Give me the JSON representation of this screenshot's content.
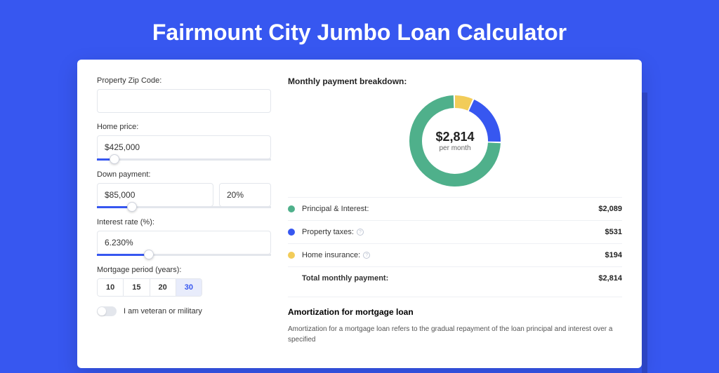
{
  "title": "Fairmount City Jumbo Loan Calculator",
  "colors": {
    "page_bg": "#3757f0",
    "card_bg": "#ffffff",
    "accent": "#3757f0",
    "slider_fill": "#3757f0",
    "border": "#e3e6ec",
    "text": "#333333"
  },
  "form": {
    "zip": {
      "label": "Property Zip Code:",
      "value": ""
    },
    "home_price": {
      "label": "Home price:",
      "value": "$425,000",
      "slider_pct": 10
    },
    "down_payment": {
      "label": "Down payment:",
      "value": "$85,000",
      "pct": "20%",
      "slider_pct": 20
    },
    "interest": {
      "label": "Interest rate (%):",
      "value": "6.230%",
      "slider_pct": 30
    },
    "period": {
      "label": "Mortgage period (years):",
      "options": [
        "10",
        "15",
        "20",
        "30"
      ],
      "selected": "30"
    },
    "veteran": {
      "label": "I am veteran or military",
      "checked": false
    }
  },
  "breakdown": {
    "title": "Monthly payment breakdown:",
    "total_amount": "$2,814",
    "total_sub": "per month",
    "donut": {
      "segments": [
        {
          "label": "Principal & Interest",
          "value": 2089,
          "pct": 74.2,
          "color": "#4fb08b"
        },
        {
          "label": "Property taxes",
          "value": 531,
          "pct": 18.9,
          "color": "#3757f0"
        },
        {
          "label": "Home insurance",
          "value": 194,
          "pct": 6.9,
          "color": "#f2cc59"
        }
      ],
      "stroke_width": 18,
      "radius": 56
    },
    "rows": [
      {
        "dot": "#4fb08b",
        "label": "Principal & Interest:",
        "info": false,
        "value": "$2,089"
      },
      {
        "dot": "#3757f0",
        "label": "Property taxes:",
        "info": true,
        "value": "$531"
      },
      {
        "dot": "#f2cc59",
        "label": "Home insurance:",
        "info": true,
        "value": "$194"
      }
    ],
    "total_row": {
      "label": "Total monthly payment:",
      "value": "$2,814"
    }
  },
  "amortization": {
    "title": "Amortization for mortgage loan",
    "text": "Amortization for a mortgage loan refers to the gradual repayment of the loan principal and interest over a specified"
  }
}
